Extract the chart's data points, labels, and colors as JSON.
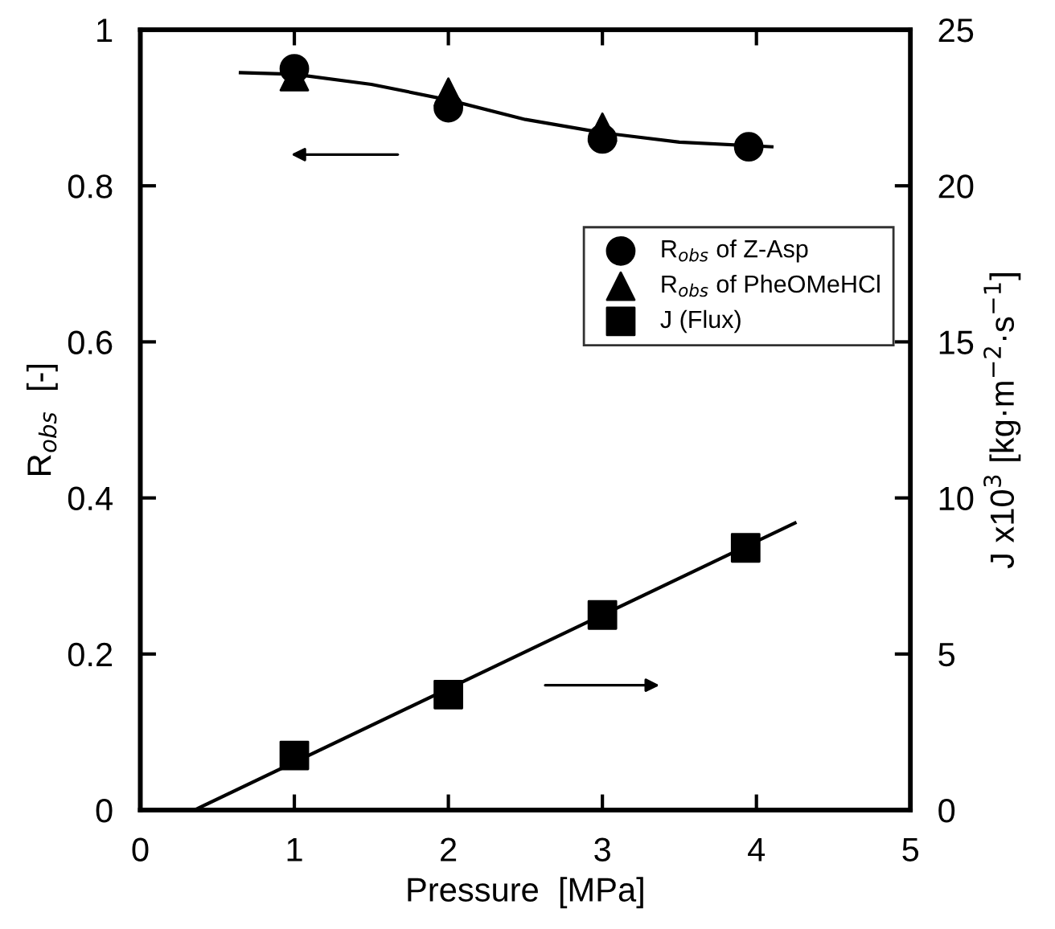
{
  "chart_data": {
    "type": "scatter",
    "xlabel": "Pressure  [MPa]",
    "ylabel": "R$_{obs}$  [-]",
    "y2label": "J x10$^{3}$ [kg·m$^{−2}$·s$^{−1}$]",
    "xlim": [
      0,
      5
    ],
    "xticks": [
      0,
      1,
      2,
      3,
      4,
      5
    ],
    "ylim": [
      0,
      1
    ],
    "yticks": [
      0,
      0.2,
      0.4,
      0.6,
      0.8,
      1
    ],
    "y2lim": [
      0,
      25
    ],
    "y2ticks": [
      0,
      5,
      10,
      15,
      20,
      25
    ],
    "legend": "right",
    "grid": false,
    "series": [
      {
        "name": "R$_{obs}$ of Z-Asp",
        "marker": "circle",
        "color": "#000000",
        "x": [
          1,
          2,
          3,
          3.95
        ],
        "values": [
          0.95,
          0.9,
          0.86,
          0.85
        ]
      },
      {
        "name": "R$_{obs}$ of PheOMeHCl",
        "marker": "triangle",
        "color": "#000000",
        "x": [
          1,
          2,
          3
        ],
        "values": [
          0.94,
          0.92,
          0.875
        ]
      },
      {
        "name": "J (Flux)",
        "marker": "square",
        "color": "#000000",
        "axis": "y2",
        "x": [
          1,
          2,
          3,
          3.93
        ],
        "values": [
          1.75,
          3.7,
          6.25,
          8.4
        ]
      },
      {
        "type": "line",
        "marker": "none",
        "color": "#000000",
        "x": [
          0.65,
          1,
          1.5,
          2,
          2.5,
          3,
          3.5,
          4.1
        ],
        "values": [
          0.945,
          0.943,
          0.93,
          0.91,
          0.885,
          0.868,
          0.856,
          0.85
        ]
      },
      {
        "type": "line",
        "marker": "none",
        "color": "#000000",
        "axis": "y2",
        "x": [
          0.35,
          4.25
        ],
        "values": [
          0,
          9.2
        ]
      }
    ]
  }
}
